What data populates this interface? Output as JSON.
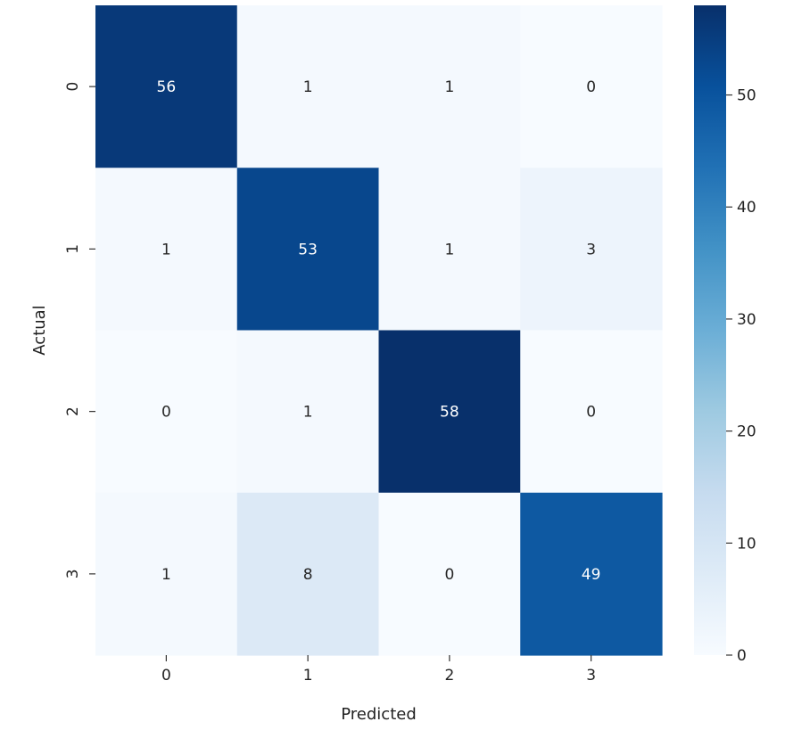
{
  "chart_data": {
    "type": "heatmap",
    "title": "",
    "xlabel": "Predicted",
    "ylabel": "Actual",
    "x_categories": [
      "0",
      "1",
      "2",
      "3"
    ],
    "y_categories": [
      "0",
      "1",
      "2",
      "3"
    ],
    "values": [
      [
        56,
        1,
        1,
        0
      ],
      [
        1,
        53,
        1,
        3
      ],
      [
        0,
        1,
        58,
        0
      ],
      [
        1,
        8,
        0,
        49
      ]
    ],
    "colormap": "Blues",
    "colorbar": {
      "range": [
        0,
        58
      ],
      "ticks": [
        0,
        10,
        20,
        30,
        40,
        50
      ],
      "tick_labels": [
        "0",
        "10",
        "20",
        "30",
        "40",
        "50"
      ]
    },
    "grid": false,
    "annotations_shown": true
  }
}
